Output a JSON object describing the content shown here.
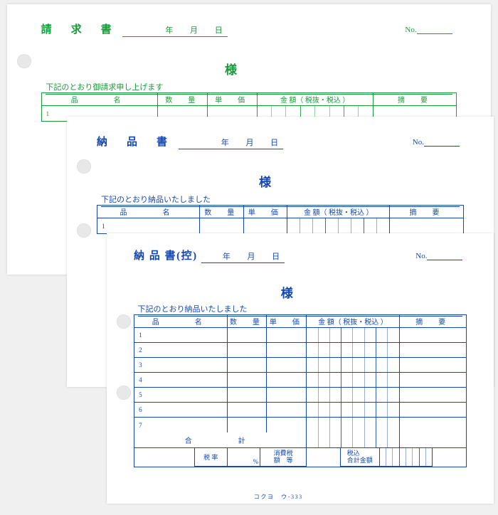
{
  "colors": {
    "green": "#1a9b3a",
    "blue": "#1348b3",
    "paper": "#ffffff",
    "bg": "#f0f0f0",
    "hole": "#e8e8e8"
  },
  "headers": {
    "name": "品　　名",
    "qty": "数　量",
    "unit": "単　価",
    "amount": "金 額（ 税抜・税込 ）",
    "note": "摘　要"
  },
  "date": {
    "year": "年",
    "month": "月",
    "day": "日"
  },
  "no_label": "No.",
  "sama": "様",
  "sheet1": {
    "title": "請　求　書",
    "note": "下記のとおり御請求申し上げます",
    "row1": "1"
  },
  "sheet2": {
    "title": "納　品　書",
    "note": "下記のとおり納品いたしました",
    "row1": "1"
  },
  "sheet3": {
    "title": "納 品 書(控)",
    "note": "下記のとおり納品いたしました",
    "rows": [
      "1",
      "2",
      "3",
      "4",
      "5",
      "6",
      "7"
    ],
    "sum": "合　　計",
    "tax_rate_label": "税 率",
    "percent": "%",
    "consumption_tax_label": "消費税\n額　等",
    "tax_incl_total_label": "税込\n合計金額",
    "brand": "コクヨ　ウ-333"
  }
}
